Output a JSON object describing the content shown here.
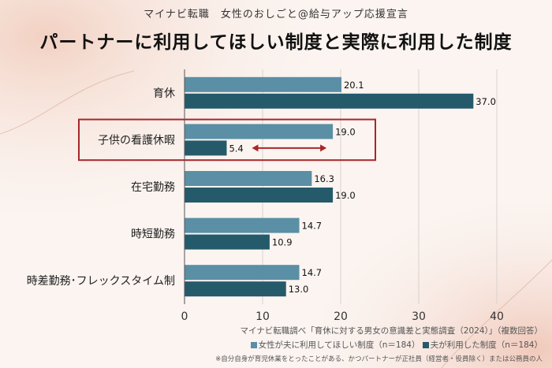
{
  "header": {
    "subtitle": "マイナビ転職　女性のおしごと@給与アップ応援宣言",
    "title": "パートナーに利用してほしい制度と実際に利用した制度"
  },
  "colors": {
    "series_wish": "#5a8fa6",
    "series_used": "#255a6b",
    "highlight": "#a8262b",
    "axis": "#555555"
  },
  "chart_data": {
    "type": "bar",
    "orientation": "horizontal",
    "categories": [
      "育休",
      "子供の看護休暇",
      "在宅勤務",
      "時短勤務",
      "時差勤務･フレックスタイム制"
    ],
    "series": [
      {
        "name": "女性が夫に利用してほしい制度（n＝184）",
        "values": [
          20.1,
          19.0,
          16.3,
          14.7,
          14.7
        ]
      },
      {
        "name": "夫が利用した制度（n＝184）",
        "values": [
          37.0,
          5.4,
          19.0,
          10.9,
          13.0
        ]
      }
    ],
    "xlim": [
      0,
      40
    ],
    "xticks": [
      0,
      10,
      20,
      30,
      40
    ],
    "highlighted_category": "子供の看護休暇",
    "legend_position": "bottom-right"
  },
  "footer": {
    "source": "マイナビ転職調べ「育休に対する男女の意識差と実態調査（2024）」（複数回答）",
    "note": "※自分自身が育児休業をとったことがある、かつパートナーが正社員（経営者・役員除く）または公務員の人"
  }
}
